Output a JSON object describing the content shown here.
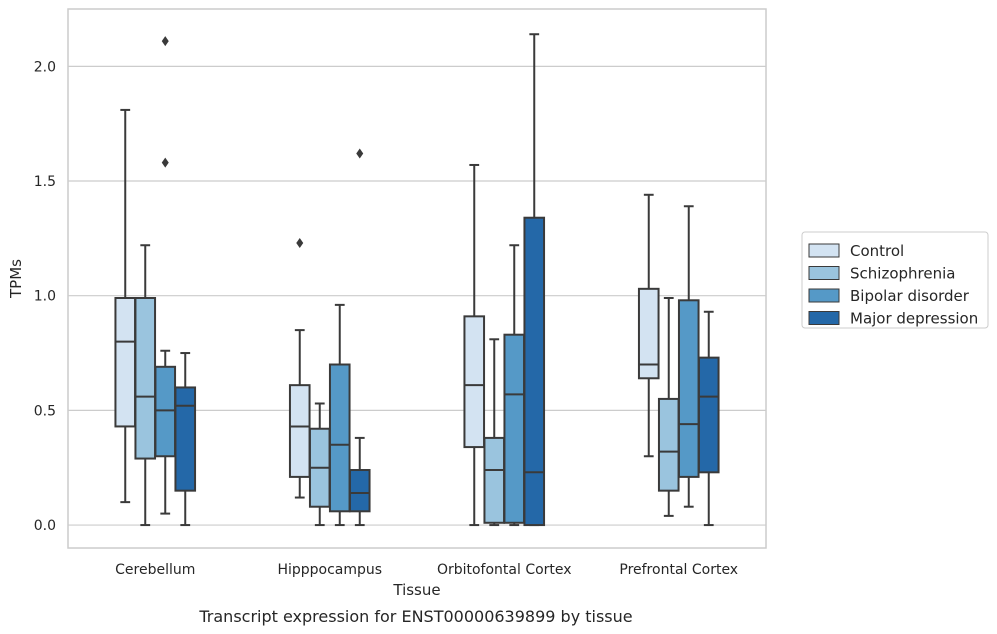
{
  "caption": "Transcript expression for ENST00000639899 by tissue",
  "chart_data": {
    "type": "boxplot",
    "xlabel": "Tissue",
    "ylabel": "TPMs",
    "ylim": [
      -0.1,
      2.25
    ],
    "yticks": [
      0.0,
      0.5,
      1.0,
      1.5,
      2.0
    ],
    "ytick_labels": [
      "0.0",
      "0.5",
      "1.0",
      "1.5",
      "2.0"
    ],
    "grid": "horizontal",
    "legend_placement": "right-outside",
    "categories": [
      "Cerebellum",
      "Hipppocampus",
      "Orbitofontal Cortex",
      "Prefrontal Cortex"
    ],
    "series": [
      {
        "name": "Control",
        "color": "#d3e3f2",
        "boxes": [
          {
            "whislo": 0.1,
            "q1": 0.43,
            "med": 0.8,
            "q3": 0.99,
            "whishi": 1.81,
            "fliers": []
          },
          {
            "whislo": 0.12,
            "q1": 0.21,
            "med": 0.43,
            "q3": 0.61,
            "whishi": 0.85,
            "fliers": [
              1.23
            ]
          },
          {
            "whislo": 0.0,
            "q1": 0.34,
            "med": 0.61,
            "q3": 0.91,
            "whishi": 1.57,
            "fliers": []
          },
          {
            "whislo": 0.3,
            "q1": 0.64,
            "med": 0.7,
            "q3": 1.03,
            "whishi": 1.44,
            "fliers": []
          }
        ]
      },
      {
        "name": "Schizophrenia",
        "color": "#9ac4de",
        "boxes": [
          {
            "whislo": 0.0,
            "q1": 0.29,
            "med": 0.56,
            "q3": 0.99,
            "whishi": 1.22,
            "fliers": []
          },
          {
            "whislo": 0.0,
            "q1": 0.08,
            "med": 0.25,
            "q3": 0.42,
            "whishi": 0.53,
            "fliers": []
          },
          {
            "whislo": 0.0,
            "q1": 0.01,
            "med": 0.24,
            "q3": 0.38,
            "whishi": 0.81,
            "fliers": []
          },
          {
            "whislo": 0.04,
            "q1": 0.15,
            "med": 0.32,
            "q3": 0.55,
            "whishi": 0.99,
            "fliers": []
          }
        ]
      },
      {
        "name": "Bipolar disorder",
        "color": "#5599c7",
        "boxes": [
          {
            "whislo": 0.05,
            "q1": 0.3,
            "med": 0.5,
            "q3": 0.69,
            "whishi": 0.76,
            "fliers": [
              1.58,
              2.11
            ]
          },
          {
            "whislo": 0.0,
            "q1": 0.06,
            "med": 0.35,
            "q3": 0.7,
            "whishi": 0.96,
            "fliers": []
          },
          {
            "whislo": 0.0,
            "q1": 0.01,
            "med": 0.57,
            "q3": 0.83,
            "whishi": 1.22,
            "fliers": []
          },
          {
            "whislo": 0.08,
            "q1": 0.21,
            "med": 0.44,
            "q3": 0.98,
            "whishi": 1.39,
            "fliers": []
          }
        ]
      },
      {
        "name": "Major depression",
        "color": "#2468a8",
        "boxes": [
          {
            "whislo": 0.0,
            "q1": 0.15,
            "med": 0.52,
            "q3": 0.6,
            "whishi": 0.75,
            "fliers": []
          },
          {
            "whislo": 0.0,
            "q1": 0.06,
            "med": 0.14,
            "q3": 0.24,
            "whishi": 0.38,
            "fliers": [
              1.62
            ]
          },
          {
            "whislo": 0.0,
            "q1": 0.0,
            "med": 0.23,
            "q3": 1.34,
            "whishi": 2.14,
            "fliers": []
          },
          {
            "whislo": 0.0,
            "q1": 0.23,
            "med": 0.56,
            "q3": 0.73,
            "whishi": 0.93,
            "fliers": []
          }
        ]
      }
    ]
  }
}
